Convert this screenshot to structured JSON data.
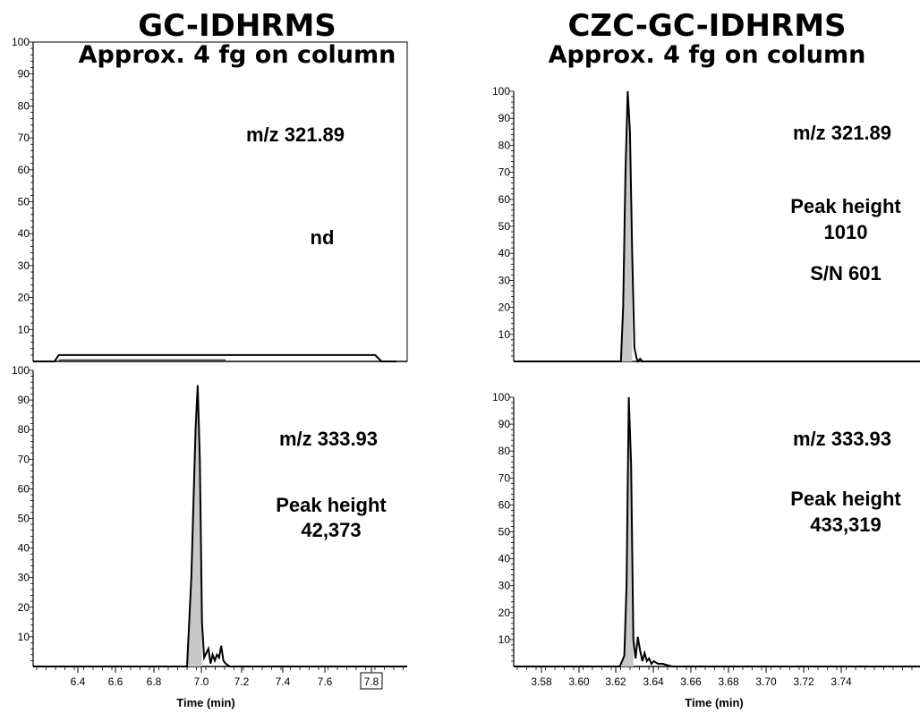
{
  "panels_left": {
    "title": "GC-IDHRMS",
    "subtitle": "Approx. 4 fg on column"
  },
  "panels_right": {
    "title": "CZC-GC-IDHRMS",
    "subtitle": "Approx. 4 fg on column"
  },
  "chart_data": [
    {
      "type": "line",
      "name": "gc-top",
      "xlim": [
        6.2,
        7.95
      ],
      "ylim": [
        0,
        100
      ],
      "y_ticks": [
        10,
        20,
        30,
        40,
        50,
        60,
        70,
        80,
        90,
        100
      ],
      "x_ticks": [],
      "annotations": [
        "m/z 321.89",
        "nd"
      ],
      "x": [
        6.2,
        6.3,
        6.32,
        7.8,
        7.83,
        7.9
      ],
      "y": [
        0,
        0,
        2,
        2,
        0,
        0
      ]
    },
    {
      "type": "line",
      "name": "gc-bottom",
      "xlim": [
        6.2,
        7.95
      ],
      "ylim": [
        0,
        100
      ],
      "y_ticks": [
        10,
        20,
        30,
        40,
        50,
        60,
        70,
        80,
        90,
        100
      ],
      "x_ticks": [
        "6.4",
        "6.6",
        "6.8",
        "7.0",
        "7.2",
        "7.4",
        "7.6",
        "7.8"
      ],
      "xlabel": "Time (min)",
      "annotations": [
        "m/z 333.93",
        "Peak height",
        "42,373"
      ],
      "x": [
        6.2,
        6.92,
        6.94,
        6.96,
        6.97,
        6.98,
        6.99,
        7.0,
        7.02,
        7.03,
        7.04,
        7.05,
        7.06,
        7.07,
        7.08,
        7.09,
        7.1,
        7.12,
        7.95
      ],
      "y": [
        0,
        0,
        30,
        80,
        95,
        70,
        15,
        3,
        6,
        1,
        4,
        2,
        4,
        3,
        7,
        2,
        1,
        0,
        0
      ]
    },
    {
      "type": "line",
      "name": "czc-top",
      "xlim": [
        3.57,
        3.75
      ],
      "ylim": [
        0,
        100
      ],
      "y_ticks": [
        10,
        20,
        30,
        40,
        50,
        60,
        70,
        80,
        90,
        100
      ],
      "x_ticks": [],
      "annotations": [
        "m/z 321.89",
        "Peak height",
        "1010",
        "S/N 601"
      ],
      "x": [
        3.57,
        3.6175,
        3.6185,
        3.6195,
        3.6205,
        3.6215,
        3.6225,
        3.6235,
        3.6245,
        3.625,
        3.626,
        3.627,
        3.75
      ],
      "y": [
        0,
        0,
        20,
        70,
        100,
        85,
        40,
        5,
        1,
        0,
        1,
        0,
        0
      ]
    },
    {
      "type": "line",
      "name": "czc-bottom",
      "xlim": [
        3.57,
        3.75
      ],
      "ylim": [
        0,
        100
      ],
      "y_ticks": [
        10,
        20,
        30,
        40,
        50,
        60,
        70,
        80,
        90,
        100
      ],
      "x_ticks": [
        "3.58",
        "3.60",
        "3.62",
        "3.64",
        "3.66",
        "3.68",
        "3.70",
        "3.72",
        "3.74"
      ],
      "xlabel": "Time (min)",
      "annotations": [
        "m/z 333.93",
        "Peak height",
        "433,319"
      ],
      "x": [
        3.57,
        3.617,
        3.618,
        3.619,
        3.62,
        3.621,
        3.622,
        3.623,
        3.624,
        3.625,
        3.626,
        3.627,
        3.628,
        3.629,
        3.63,
        3.631,
        3.632,
        3.634,
        3.636,
        3.64,
        3.75
      ],
      "y": [
        0,
        0,
        2,
        4,
        30,
        100,
        75,
        10,
        3,
        11,
        6,
        2,
        5,
        2,
        3,
        1,
        2,
        1,
        1,
        0,
        0
      ]
    }
  ]
}
